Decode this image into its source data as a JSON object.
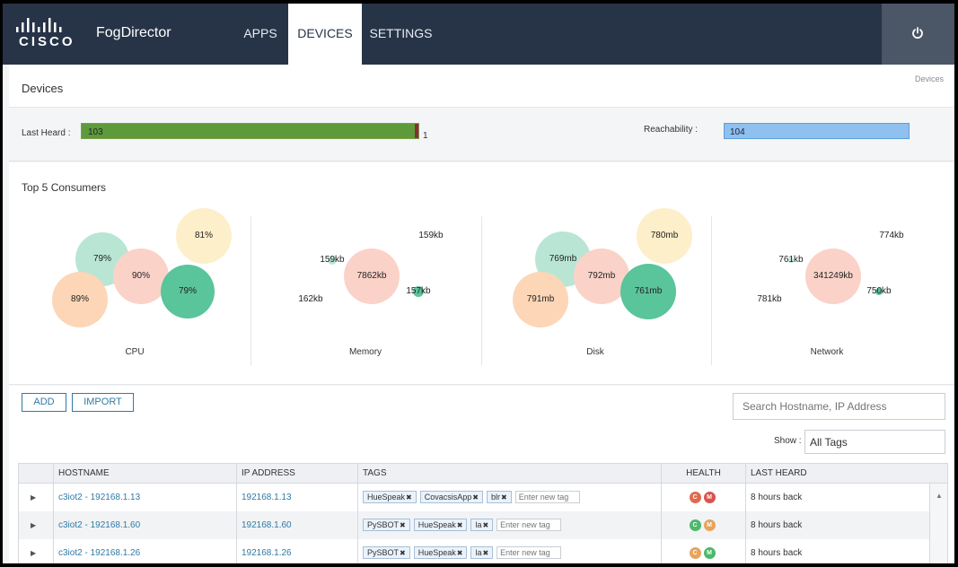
{
  "header": {
    "brand": "FogDirector",
    "logo_text": "CISCO",
    "tabs": [
      {
        "label": "APPS",
        "active": false
      },
      {
        "label": "DEVICES",
        "active": true
      },
      {
        "label": "SETTINGS",
        "active": false
      }
    ],
    "power_icon": "power-icon",
    "bg_color": "#273448"
  },
  "page": {
    "title": "Devices",
    "breadcrumb": "Devices"
  },
  "status": {
    "last_heard_label": "Last Heard :",
    "last_heard_recent": 103,
    "last_heard_recent_text": "103",
    "last_heard_old": 1,
    "last_heard_old_text": "1",
    "reachability_label": "Reachability :",
    "reachability_count": "104",
    "colors": {
      "recent": "#5e9a3a",
      "old": "#8b2b3b",
      "reach": "#8ec0f0"
    }
  },
  "consumers": {
    "title": "Top 5 Consumers",
    "charts": [
      {
        "name": "CPU",
        "items": [
          "81%",
          "79%",
          "90%",
          "89%",
          "79%"
        ]
      },
      {
        "name": "Memory",
        "items": [
          "159kb",
          "159kb",
          "7862kb",
          "157kb",
          "162kb"
        ]
      },
      {
        "name": "Disk",
        "items": [
          "780mb",
          "769mb",
          "792mb",
          "791mb",
          "761mb"
        ]
      },
      {
        "name": "Network",
        "items": [
          "774kb",
          "761kb",
          "341249kb",
          "750kb",
          "781kb"
        ]
      }
    ],
    "colors": {
      "yellow": "#fdefc9",
      "mint": "#b9e6d4",
      "pink": "#fbd2c8",
      "peach": "#fcd6b6",
      "green": "#5ac49b"
    }
  },
  "toolbar": {
    "add_label": "ADD",
    "import_label": "IMPORT",
    "search_placeholder": "Search Hostname, IP Address",
    "show_label": "Show :",
    "tag_filter_value": "All Tags"
  },
  "table": {
    "columns": [
      "",
      "HOSTNAME",
      "IP ADDRESS",
      "TAGS",
      "HEALTH",
      "LAST HEARD"
    ],
    "rows": [
      {
        "hostname": "c3iot2 - 192168.1.13",
        "ip": "192168.1.13",
        "tags": [
          "HueSpeak",
          "CovacsisApp",
          "blr"
        ],
        "new_tag_placeholder": "Enter new tag",
        "health": [
          {
            "letter": "C",
            "color": "#e06a4e"
          },
          {
            "letter": "M",
            "color": "#d9534f"
          }
        ],
        "last_heard": "8 hours back"
      },
      {
        "hostname": "c3iot2 - 192168.1.60",
        "ip": "192168.1.60",
        "tags": [
          "PySBOT",
          "HueSpeak",
          "la"
        ],
        "new_tag_placeholder": "Enter new tag",
        "health": [
          {
            "letter": "C",
            "color": "#4cb86b"
          },
          {
            "letter": "M",
            "color": "#e8a35c"
          }
        ],
        "last_heard": "8 hours back"
      },
      {
        "hostname": "c3iot2 - 192168.1.26",
        "ip": "192168.1.26",
        "tags": [
          "PySBOT",
          "HueSpeak",
          "la"
        ],
        "new_tag_placeholder": "Enter new tag",
        "health": [
          {
            "letter": "C",
            "color": "#e8a35c"
          },
          {
            "letter": "M",
            "color": "#4cb86b"
          }
        ],
        "last_heard": "8 hours back"
      }
    ]
  }
}
